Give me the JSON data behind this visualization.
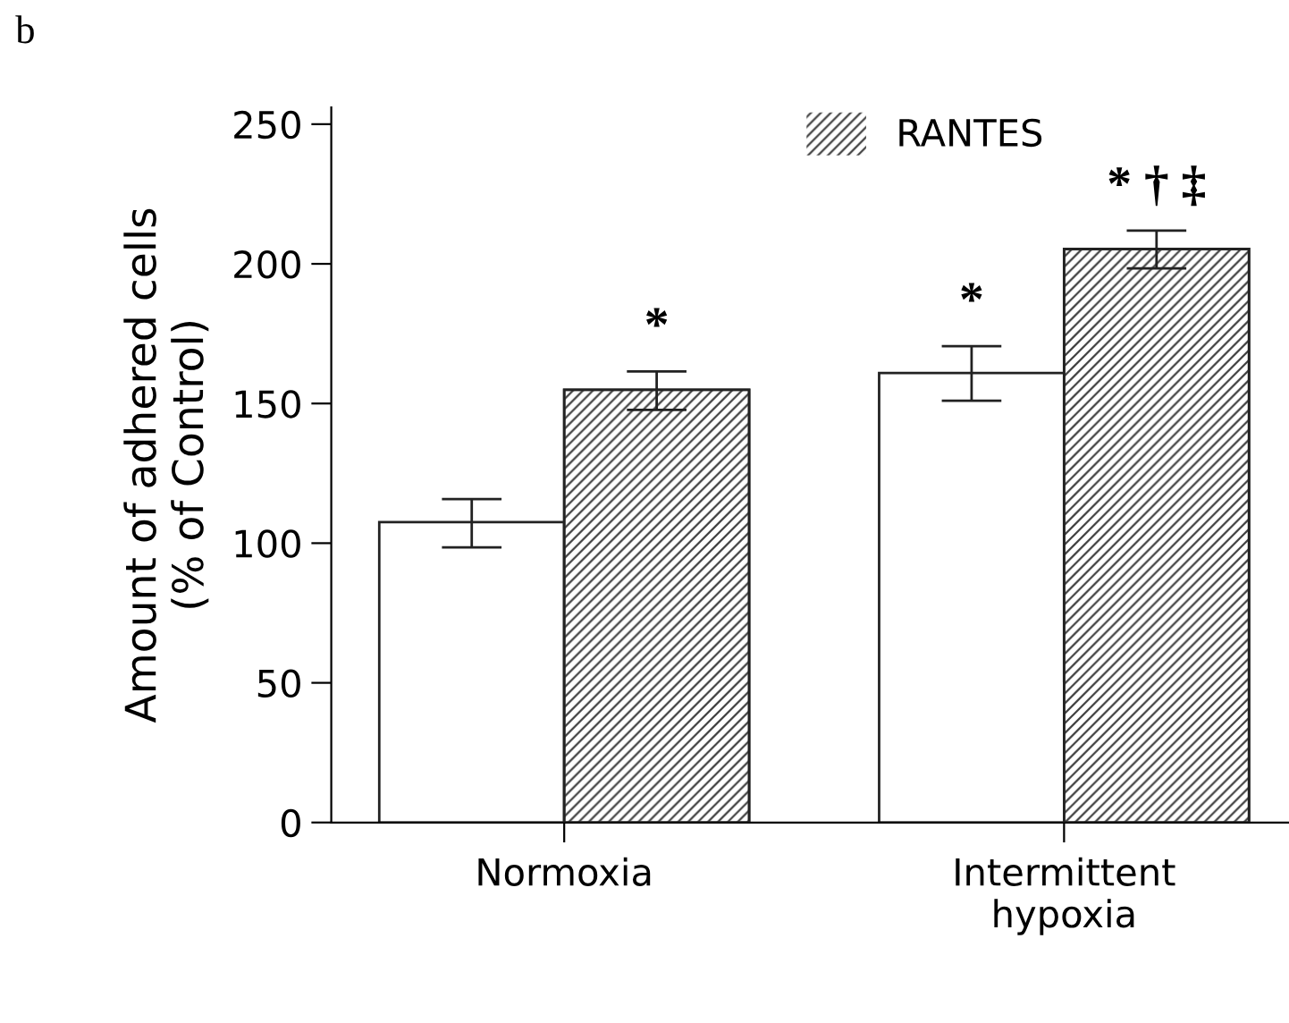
{
  "chart_data": {
    "type": "bar",
    "ylabel": "Amount of adhered cells\n(% of Control)",
    "categories": [
      "Normoxia",
      "Intermittent\nhypoxia"
    ],
    "series": [
      {
        "color": "#ffffff",
        "values": [
          107.5,
          160.9
        ],
        "errors": [
          [
            98.5,
            115.8
          ],
          [
            151,
            170.5
          ]
        ],
        "value_labels": [
          null,
          "*"
        ]
      },
      {
        "name": "RANTES",
        "color": "#404040",
        "values": [
          154.9,
          205.3
        ],
        "errors": [
          [
            147.7,
            161.5
          ],
          [
            198.4,
            211.9
          ]
        ],
        "value_labels": [
          "*",
          "* † ‡"
        ]
      }
    ],
    "ylim": [
      0,
      256
    ],
    "yticks": [
      0,
      50,
      100,
      150,
      200,
      250
    ],
    "legend": "top",
    "grid": false,
    "annotations": [
      "b"
    ]
  }
}
